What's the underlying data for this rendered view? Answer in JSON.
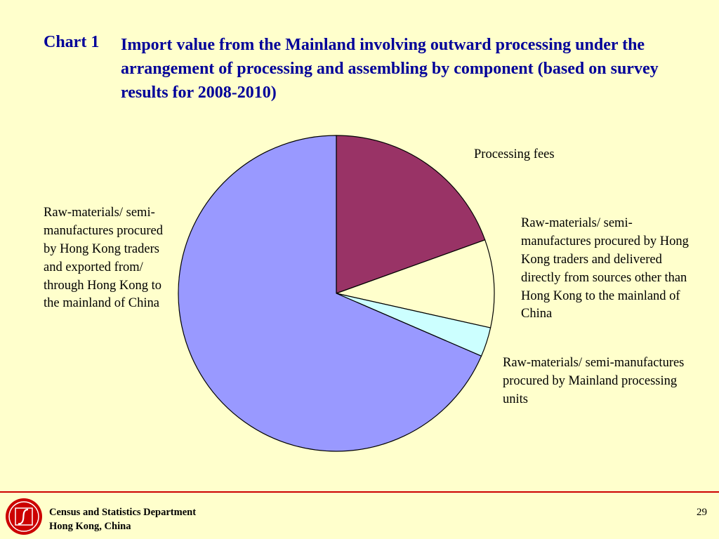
{
  "title": {
    "prefix": "Chart 1",
    "text": "Import value from the Mainland involving outward processing under the arrangement of processing and assembling by component (based on survey results for 2008-2010)"
  },
  "colors": {
    "title": "#000099",
    "background": "#ffffcc",
    "footer_line": "#cc0000"
  },
  "chart_data": {
    "type": "pie",
    "title": "Import value from the Mainland involving outward processing under the arrangement of processing and assembling by component (based on survey results for 2008-2010)",
    "series": [
      {
        "name": "Processing fees",
        "value": 19.5,
        "color": "#993366"
      },
      {
        "name": "Raw-materials/ semi-manufactures procured by Hong Kong traders and delivered directly from sources other than Hong Kong to the mainland of China",
        "value": 9.0,
        "color": "#ffffcc"
      },
      {
        "name": "Raw-materials/ semi-manufactures procured by Mainland processing units",
        "value": 3.0,
        "color": "#ccffff"
      },
      {
        "name": "Raw-materials/ semi-manufactures procured by Hong Kong traders and exported from/ through Hong Kong to the mainland of China",
        "value": 68.5,
        "color": "#9999ff"
      }
    ]
  },
  "labels": {
    "processing_fees": "Processing fees",
    "direct_delivery": "Raw-materials/ semi-manufactures procured by Hong Kong traders and delivered directly from sources other than Hong Kong to the mainland of China",
    "mainland_units": "Raw-materials/ semi-manufactures procured by Mainland processing units",
    "hk_exported": "Raw-materials/ semi-manufactures procured by Hong Kong traders and exported from/ through Hong Kong to the mainland of China"
  },
  "footer": {
    "org_line1": "Census and Statistics Department",
    "org_line2": "Hong Kong, China",
    "page_number": "29"
  }
}
